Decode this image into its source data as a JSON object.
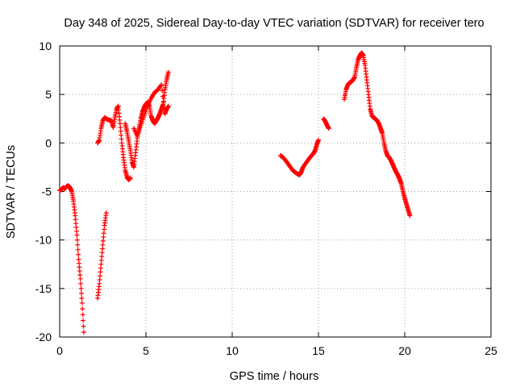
{
  "chart_data": {
    "type": "scatter",
    "title": "Day 348 of 2025, Sidereal Day-to-day VTEC variation (SDTVAR) for receiver tero",
    "xlabel": "GPS time / hours",
    "ylabel": "SDTVAR / TECUs",
    "xlim": [
      0,
      25
    ],
    "ylim": [
      -20,
      10
    ],
    "xticks": [
      0,
      5,
      10,
      15,
      20,
      25
    ],
    "yticks": [
      -20,
      -15,
      -10,
      -5,
      0,
      5,
      10
    ],
    "grid": true,
    "marker": "plus",
    "color": "#ff0000",
    "series": [
      {
        "points": [
          [
            0.0,
            -4.9
          ],
          [
            0.1,
            -4.8
          ],
          [
            0.2,
            -4.6
          ],
          [
            0.3,
            -4.7
          ],
          [
            0.4,
            -4.5
          ],
          [
            0.5,
            -4.4
          ],
          [
            0.6,
            -4.6
          ],
          [
            0.7,
            -5.0
          ],
          [
            0.8,
            -6.0
          ],
          [
            0.9,
            -7.5
          ],
          [
            1.0,
            -9.5
          ],
          [
            1.1,
            -12.0
          ],
          [
            1.2,
            -14.0
          ],
          [
            1.3,
            -16.5
          ],
          [
            1.4,
            -19.5
          ],
          [
            2.2,
            -16.0
          ],
          [
            2.3,
            -14.5
          ],
          [
            2.4,
            -12.5
          ],
          [
            2.5,
            -10.5
          ],
          [
            2.6,
            -8.5
          ],
          [
            2.7,
            -7.2
          ],
          [
            2.2,
            0.0
          ],
          [
            2.3,
            0.3
          ],
          [
            2.4,
            1.5
          ],
          [
            2.5,
            2.3
          ],
          [
            2.6,
            2.6
          ],
          [
            2.8,
            2.4
          ],
          [
            3.0,
            2.3
          ],
          [
            3.1,
            1.6
          ],
          [
            3.2,
            2.6
          ],
          [
            3.3,
            3.5
          ],
          [
            3.4,
            3.8
          ],
          [
            3.5,
            2.0
          ],
          [
            3.6,
            0.0
          ],
          [
            3.7,
            -1.5
          ],
          [
            3.8,
            -2.8
          ],
          [
            3.9,
            -3.5
          ],
          [
            4.0,
            -3.8
          ],
          [
            4.1,
            -3.6
          ],
          [
            3.8,
            2.0
          ],
          [
            3.9,
            1.2
          ],
          [
            4.0,
            0.2
          ],
          [
            4.1,
            -0.8
          ],
          [
            4.2,
            -2.0
          ],
          [
            4.3,
            -2.5
          ],
          [
            4.4,
            -1.0
          ],
          [
            4.5,
            0.5
          ],
          [
            4.6,
            1.5
          ],
          [
            4.7,
            2.5
          ],
          [
            4.8,
            3.2
          ],
          [
            4.9,
            3.7
          ],
          [
            5.0,
            4.0
          ],
          [
            5.1,
            4.2
          ],
          [
            5.2,
            3.8
          ],
          [
            5.3,
            2.8
          ],
          [
            5.4,
            2.3
          ],
          [
            5.5,
            2.0
          ],
          [
            5.6,
            2.3
          ],
          [
            5.7,
            2.6
          ],
          [
            5.8,
            3.0
          ],
          [
            5.9,
            3.5
          ],
          [
            6.0,
            4.0
          ],
          [
            6.1,
            5.5
          ],
          [
            6.2,
            6.5
          ],
          [
            6.3,
            7.3
          ],
          [
            4.3,
            1.5
          ],
          [
            4.5,
            0.7
          ],
          [
            4.7,
            1.8
          ],
          [
            4.9,
            2.8
          ],
          [
            5.1,
            3.8
          ],
          [
            5.3,
            4.6
          ],
          [
            5.5,
            5.2
          ],
          [
            5.7,
            5.5
          ],
          [
            5.9,
            6.0
          ],
          [
            6.1,
            3.0
          ],
          [
            6.2,
            3.5
          ],
          [
            6.3,
            3.8
          ],
          [
            12.8,
            -1.3
          ],
          [
            12.9,
            -1.4
          ],
          [
            13.1,
            -1.8
          ],
          [
            13.3,
            -2.3
          ],
          [
            13.5,
            -2.8
          ],
          [
            13.7,
            -3.1
          ],
          [
            13.9,
            -3.3
          ],
          [
            14.0,
            -3.0
          ],
          [
            14.1,
            -2.5
          ],
          [
            14.3,
            -2.0
          ],
          [
            14.5,
            -1.5
          ],
          [
            14.7,
            -1.1
          ],
          [
            14.8,
            -0.8
          ],
          [
            14.9,
            -0.2
          ],
          [
            15.0,
            0.3
          ],
          [
            15.3,
            2.5
          ],
          [
            15.4,
            2.2
          ],
          [
            15.5,
            1.8
          ],
          [
            15.6,
            1.5
          ],
          [
            16.5,
            4.5
          ],
          [
            16.6,
            5.5
          ],
          [
            16.7,
            6.0
          ],
          [
            16.8,
            6.2
          ],
          [
            16.9,
            6.3
          ],
          [
            17.0,
            6.5
          ],
          [
            17.1,
            6.8
          ],
          [
            17.2,
            7.8
          ],
          [
            17.3,
            8.6
          ],
          [
            17.4,
            9.0
          ],
          [
            17.5,
            9.3
          ],
          [
            17.6,
            9.0
          ],
          [
            17.7,
            8.0
          ],
          [
            17.8,
            6.5
          ],
          [
            17.9,
            5.0
          ],
          [
            18.0,
            3.5
          ],
          [
            18.1,
            2.8
          ],
          [
            18.2,
            2.6
          ],
          [
            18.3,
            2.5
          ],
          [
            18.4,
            2.3
          ],
          [
            18.5,
            2.0
          ],
          [
            18.6,
            1.5
          ],
          [
            18.7,
            1.0
          ],
          [
            18.8,
            0.0
          ],
          [
            18.9,
            -0.8
          ],
          [
            19.0,
            -1.3
          ],
          [
            19.1,
            -1.5
          ],
          [
            19.2,
            -1.8
          ],
          [
            19.3,
            -2.2
          ],
          [
            19.4,
            -2.6
          ],
          [
            19.5,
            -3.0
          ],
          [
            19.6,
            -3.3
          ],
          [
            19.7,
            -3.7
          ],
          [
            19.8,
            -4.2
          ],
          [
            19.9,
            -5.0
          ],
          [
            20.0,
            -5.7
          ],
          [
            20.1,
            -6.3
          ],
          [
            20.2,
            -6.9
          ],
          [
            20.3,
            -7.5
          ]
        ]
      }
    ]
  }
}
